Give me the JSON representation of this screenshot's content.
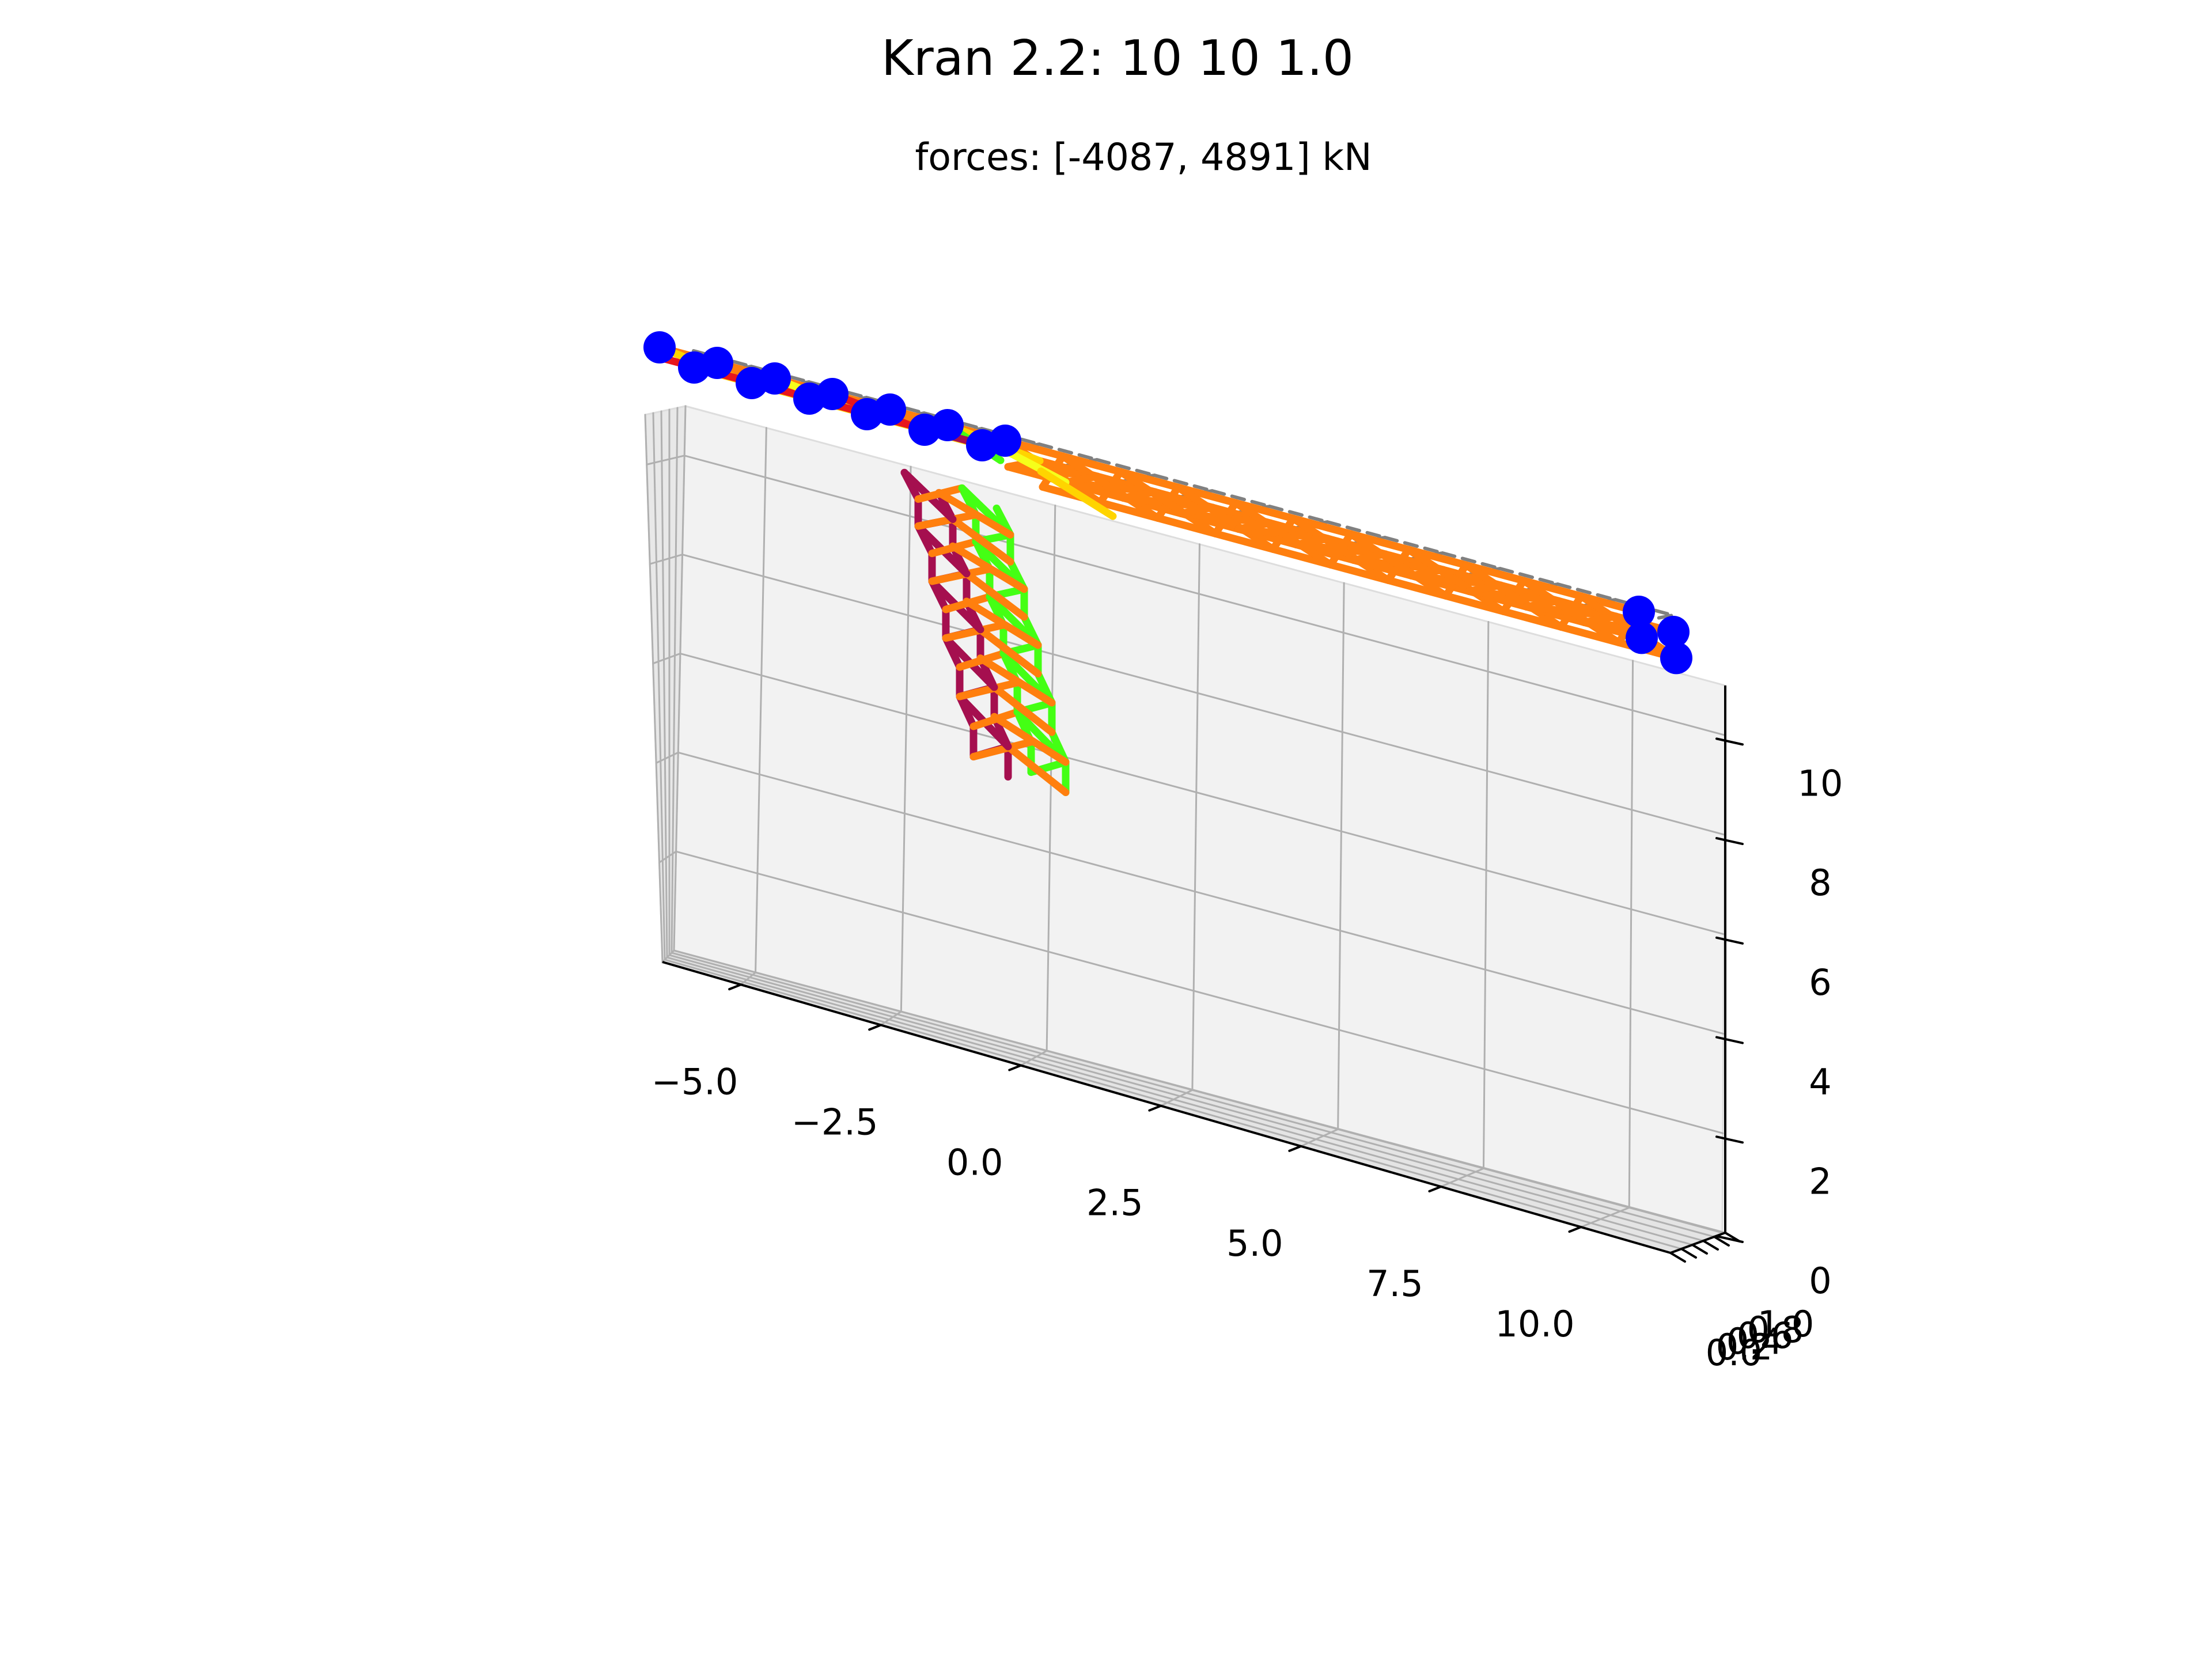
{
  "chart_data": {
    "type": "3d-truss",
    "title": "Kran 2.2: 10 10 1.0",
    "subtitle": "forces: [-4087, 4891] kN",
    "xlabel": "",
    "ylabel": "",
    "zlabel": "",
    "x_ticks": [
      "−5.0",
      "−2.5",
      "0.0",
      "2.5",
      "5.0",
      "7.5",
      "10.0"
    ],
    "y_ticks": [
      "0.0",
      "0.2",
      "0.4",
      "0.6",
      "0.8",
      "1.0"
    ],
    "z_ticks": [
      "0",
      "2",
      "4",
      "6",
      "8",
      "10"
    ],
    "xlim": [
      -6.4,
      11.6
    ],
    "ylim": [
      0,
      1
    ],
    "zlim": [
      0,
      11
    ],
    "grid": true,
    "force_range_kN": [
      -4087,
      4891
    ],
    "colors": {
      "tension_high": "#a50f4f",
      "tension": "#e8161d",
      "medium": "#ff7f0e",
      "low": "#ffd400",
      "near_zero": "#f6ff1a",
      "compression": "#44ff14",
      "load_node": "#0000ff",
      "undeformed": "#808080"
    },
    "series": [
      {
        "role": "tower",
        "x_range": [
          0,
          1
        ],
        "z_range": [
          0,
          10
        ]
      },
      {
        "role": "jib",
        "x_range": [
          1,
          11
        ],
        "z_range": [
          10,
          11
        ]
      },
      {
        "role": "counter-jib",
        "x_range": [
          -6,
          0
        ],
        "z_range": [
          10,
          11
        ]
      },
      {
        "role": "loaded nodes",
        "points": [
          {
            "x": -6,
            "y": 0,
            "z": 11
          },
          {
            "x": -6,
            "y": 1,
            "z": 11
          },
          {
            "x": -5,
            "y": 0,
            "z": 11
          },
          {
            "x": -5,
            "y": 1,
            "z": 11
          },
          {
            "x": -4,
            "y": 0,
            "z": 11
          },
          {
            "x": -4,
            "y": 1,
            "z": 11
          },
          {
            "x": -3,
            "y": 0,
            "z": 11
          },
          {
            "x": -3,
            "y": 1,
            "z": 11
          },
          {
            "x": -2,
            "y": 0,
            "z": 11
          },
          {
            "x": -2,
            "y": 1,
            "z": 11
          },
          {
            "x": -1,
            "y": 0,
            "z": 11
          },
          {
            "x": -1,
            "y": 1,
            "z": 11
          },
          {
            "x": 0,
            "y": 0,
            "z": 11
          },
          {
            "x": 11,
            "y": 0,
            "z": 10
          },
          {
            "x": 11,
            "y": 1,
            "z": 10
          },
          {
            "x": 11,
            "y": 0,
            "z": 11
          },
          {
            "x": 11,
            "y": 1,
            "z": 11
          }
        ]
      }
    ]
  }
}
